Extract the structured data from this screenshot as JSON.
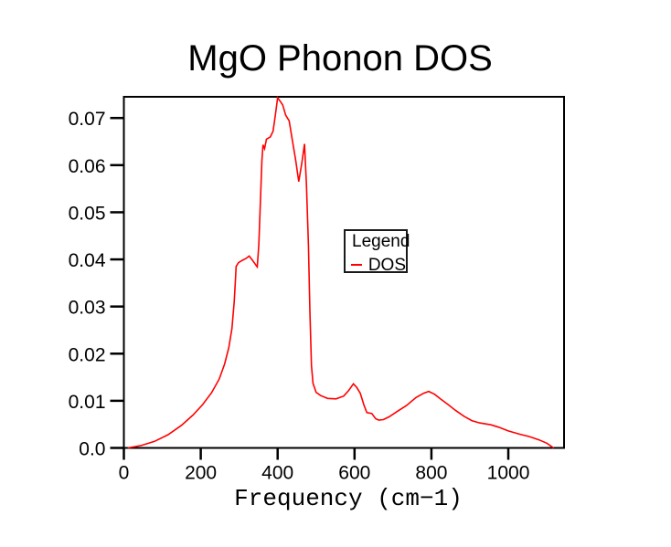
{
  "chart_data": {
    "type": "line",
    "title": "MgO Phonon DOS",
    "xlabel": "Frequency (cm−1)",
    "ylabel": "",
    "xlim": [
      0,
      1145
    ],
    "ylim": [
      0,
      0.0745
    ],
    "grid": false,
    "frame_color": "#000000",
    "x_ticks": {
      "values": [
        0,
        200,
        400,
        600,
        800,
        1000
      ],
      "labels": [
        "0",
        "200",
        "400",
        "600",
        "800",
        "1000"
      ]
    },
    "y_ticks": {
      "values": [
        0,
        0.01,
        0.02,
        0.03,
        0.04,
        0.05,
        0.06,
        0.07
      ],
      "labels": [
        "0.0",
        "0.01",
        "0.02",
        "0.03",
        "0.04",
        "0.05",
        "0.06",
        "0.07"
      ]
    },
    "legend": {
      "title": "Legend",
      "position": "inside-middle-right"
    },
    "series": [
      {
        "name": "DOS",
        "color": "#ff0000",
        "points": [
          [
            10,
            0.0
          ],
          [
            45,
            0.0005
          ],
          [
            80,
            0.0014
          ],
          [
            115,
            0.0028
          ],
          [
            150,
            0.0048
          ],
          [
            180,
            0.007
          ],
          [
            205,
            0.0092
          ],
          [
            228,
            0.0117
          ],
          [
            248,
            0.0146
          ],
          [
            262,
            0.0178
          ],
          [
            273,
            0.0213
          ],
          [
            281,
            0.0253
          ],
          [
            287,
            0.031
          ],
          [
            290,
            0.0355
          ],
          [
            292,
            0.0385
          ],
          [
            298,
            0.0393
          ],
          [
            308,
            0.0398
          ],
          [
            318,
            0.0402
          ],
          [
            326,
            0.0407
          ],
          [
            333,
            0.04
          ],
          [
            340,
            0.0392
          ],
          [
            345,
            0.0386
          ],
          [
            347,
            0.0384
          ],
          [
            351,
            0.043
          ],
          [
            355,
            0.052
          ],
          [
            359,
            0.061
          ],
          [
            362,
            0.0643
          ],
          [
            366,
            0.0635
          ],
          [
            371,
            0.0655
          ],
          [
            381,
            0.066
          ],
          [
            388,
            0.0672
          ],
          [
            394,
            0.0706
          ],
          [
            400,
            0.0743
          ],
          [
            407,
            0.0735
          ],
          [
            413,
            0.0728
          ],
          [
            421,
            0.0706
          ],
          [
            430,
            0.0694
          ],
          [
            438,
            0.0654
          ],
          [
            447,
            0.061
          ],
          [
            455,
            0.0565
          ],
          [
            463,
            0.0605
          ],
          [
            470,
            0.0645
          ],
          [
            475,
            0.056
          ],
          [
            480,
            0.043
          ],
          [
            484,
            0.029
          ],
          [
            488,
            0.0175
          ],
          [
            492,
            0.0137
          ],
          [
            500,
            0.0118
          ],
          [
            512,
            0.0111
          ],
          [
            530,
            0.0105
          ],
          [
            552,
            0.0104
          ],
          [
            572,
            0.011
          ],
          [
            585,
            0.0122
          ],
          [
            597,
            0.0136
          ],
          [
            606,
            0.0128
          ],
          [
            615,
            0.0116
          ],
          [
            625,
            0.009
          ],
          [
            632,
            0.0075
          ],
          [
            645,
            0.0073
          ],
          [
            655,
            0.0062
          ],
          [
            663,
            0.0059
          ],
          [
            675,
            0.006
          ],
          [
            690,
            0.0066
          ],
          [
            710,
            0.0077
          ],
          [
            735,
            0.009
          ],
          [
            760,
            0.0107
          ],
          [
            780,
            0.0116
          ],
          [
            793,
            0.012
          ],
          [
            808,
            0.0114
          ],
          [
            825,
            0.0103
          ],
          [
            845,
            0.0091
          ],
          [
            862,
            0.008
          ],
          [
            885,
            0.0067
          ],
          [
            905,
            0.0058
          ],
          [
            925,
            0.0053
          ],
          [
            955,
            0.0049
          ],
          [
            975,
            0.0044
          ],
          [
            1000,
            0.0036
          ],
          [
            1030,
            0.0029
          ],
          [
            1055,
            0.0024
          ],
          [
            1080,
            0.0017
          ],
          [
            1100,
            0.001
          ],
          [
            1118,
            0.0
          ]
        ]
      }
    ]
  }
}
